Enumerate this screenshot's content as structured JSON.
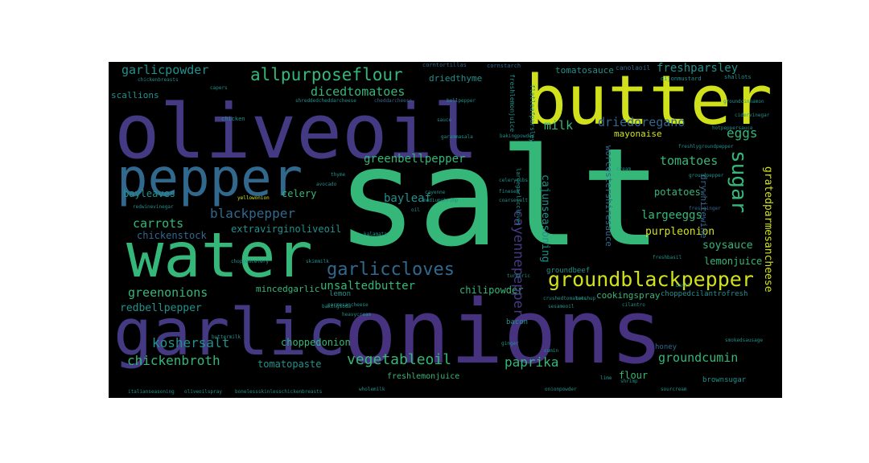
{
  "palette": {
    "background": "#000000",
    "page": "#ffffff",
    "yellow": "#d0e11c",
    "green": "#35b779",
    "teal": "#21918c",
    "blue": "#31688e",
    "indigo": "#443a83",
    "purple": "#46327e"
  },
  "words": {
    "salt": "salt",
    "onions": "onions",
    "oliveoil": "oliveoil",
    "butter": "butter",
    "garlic": "garlic",
    "water": "water",
    "pepper": "pepper",
    "groundblackpepper": "groundblackpepper",
    "garliccloves": "garliccloves",
    "allpurposeflour": "allpurposeflour",
    "garlicpowder": "garlicpowder",
    "freshparsley": "freshparsley",
    "tomatosauce": "tomatosauce",
    "driedthyme": "driedthyme",
    "dicedtomatoes": "dicedtomatoes",
    "scallions": "scallions",
    "milk": "milk",
    "driedoregano": "driedoregano",
    "eggs": "eggs",
    "mayonaise": "mayonaise",
    "greenbellpepper": "greenbellpepper",
    "tomatoes": "tomatoes",
    "sugar": "sugar",
    "bayleaves": "bayleaves",
    "celery": "celery",
    "bayleaf": "bayleaf",
    "potatoes": "potatoes",
    "blackpepper": "blackpepper",
    "carrots": "carrots",
    "extravirginoliveoil": "extravirginoliveoil",
    "chickenstock": "chickenstock",
    "largeeggs": "largeeggs",
    "purpleonion": "purpleonion",
    "soysauce": "soysauce",
    "cajunseasoning": "cajunseasoning",
    "worcestershiresauce": "worcestershiresauce",
    "cayennepepper": "cayennepepper",
    "drywhitewine": "drywhitewine",
    "gratedparmesancheese": "gratedparmesancheese",
    "unsaltedbutter": "unsaltedbutter",
    "lemonjuice": "lemonjuice",
    "greenonions": "greenonions",
    "mincedgarlic": "mincedgarlic",
    "chilipowder": "chilipowder",
    "cookingspray": "cookingspray",
    "groundbeef": "groundbeef",
    "redbellpepper": "redbellpepper",
    "choppedcilantrofresh": "choppedcilantrofresh",
    "koshersalt": "koshersalt",
    "choppedonion": "choppedonion",
    "chickenbroth": "chickenbroth",
    "tomatopaste": "tomatopaste",
    "vegetableoil": "vegetableoil",
    "paprika": "paprika",
    "groundcumin": "groundcumin",
    "flour": "flour",
    "freshlemonjuice": "freshlemonjuice",
    "lemon": "lemon",
    "bacon": "bacon",
    "honey": "honey",
    "brownsugar": "brownsugar",
    "canolaoil": "canolaoil",
    "cornstarch": "cornstarch",
    "corntortillas": "corntortillas",
    "dijonmustard": "dijonmustard",
    "shallots": "shallots",
    "chickenbreasts": "chickenbreasts",
    "flatleafparsley": "flatleafparsley",
    "capers": "capers",
    "chicken": "chicken",
    "cabbage": "cabbage",
    "shreddedcheddarcheese": "shreddedcheddarcheese",
    "cheddarcheese": "cheddarcheese",
    "bellpepper": "bellpepper",
    "sauce": "sauce",
    "garammasala": "garammasala",
    "bakingpowder": "bakingpowder",
    "groundcinnamon": "groundcinnamon",
    "cidervinegar": "cidervinegar",
    "hotpeppersauce": "hotpeppersauce",
    "freshlygroundpepper": "freshlygroundpepper",
    "cream": "cream",
    "groundpepper": "groundpepper",
    "freshginger": "freshginger",
    "thyme": "thyme",
    "avocado": "avocado",
    "largegarliccloves": "largegarliccloves",
    "cayenne": "cayenne",
    "celeryribs": "celeryribs",
    "yellowonion": "yellowonion",
    "redwinevinegar": "redwinevinegar",
    "oil": "oil",
    "mediumshrimp": "mediumshrimp",
    "finesea": "finesea",
    "coarsesalt": "coarsesalt",
    "choppedcelery": "choppedcelery",
    "skimmilk": "skimmilk",
    "kalamata": "kalamata",
    "buttermilk": "buttermilk",
    "parmesancheese": "parmesancheese",
    "heavycream": "heavycream",
    "bakingsoda": "bakingsoda",
    "turmeric": "turmeric",
    "ketchup": "ketchup",
    "sesameoil": "sesameoil",
    "crushedtomatoes": "crushedtomatoes",
    "cilantro": "cilantro",
    "cumin": "cumin",
    "redpepperflakes": "redpepperflakes",
    "basil": "basil",
    "freshbasil": "freshbasil",
    "wholemilk": "wholemilk",
    "boneless": "bonelessskinlesschickenbreasts",
    "lime": "lime",
    "shrimp": "shrimp",
    "sourcream": "sourcream",
    "oliveoilspray": "oliveoilspray",
    "onionpowder": "onionpowder",
    "italianseasoning": "italianseasoning",
    "ginger": "ginger",
    "smokedsausage": "smokedsausage"
  }
}
